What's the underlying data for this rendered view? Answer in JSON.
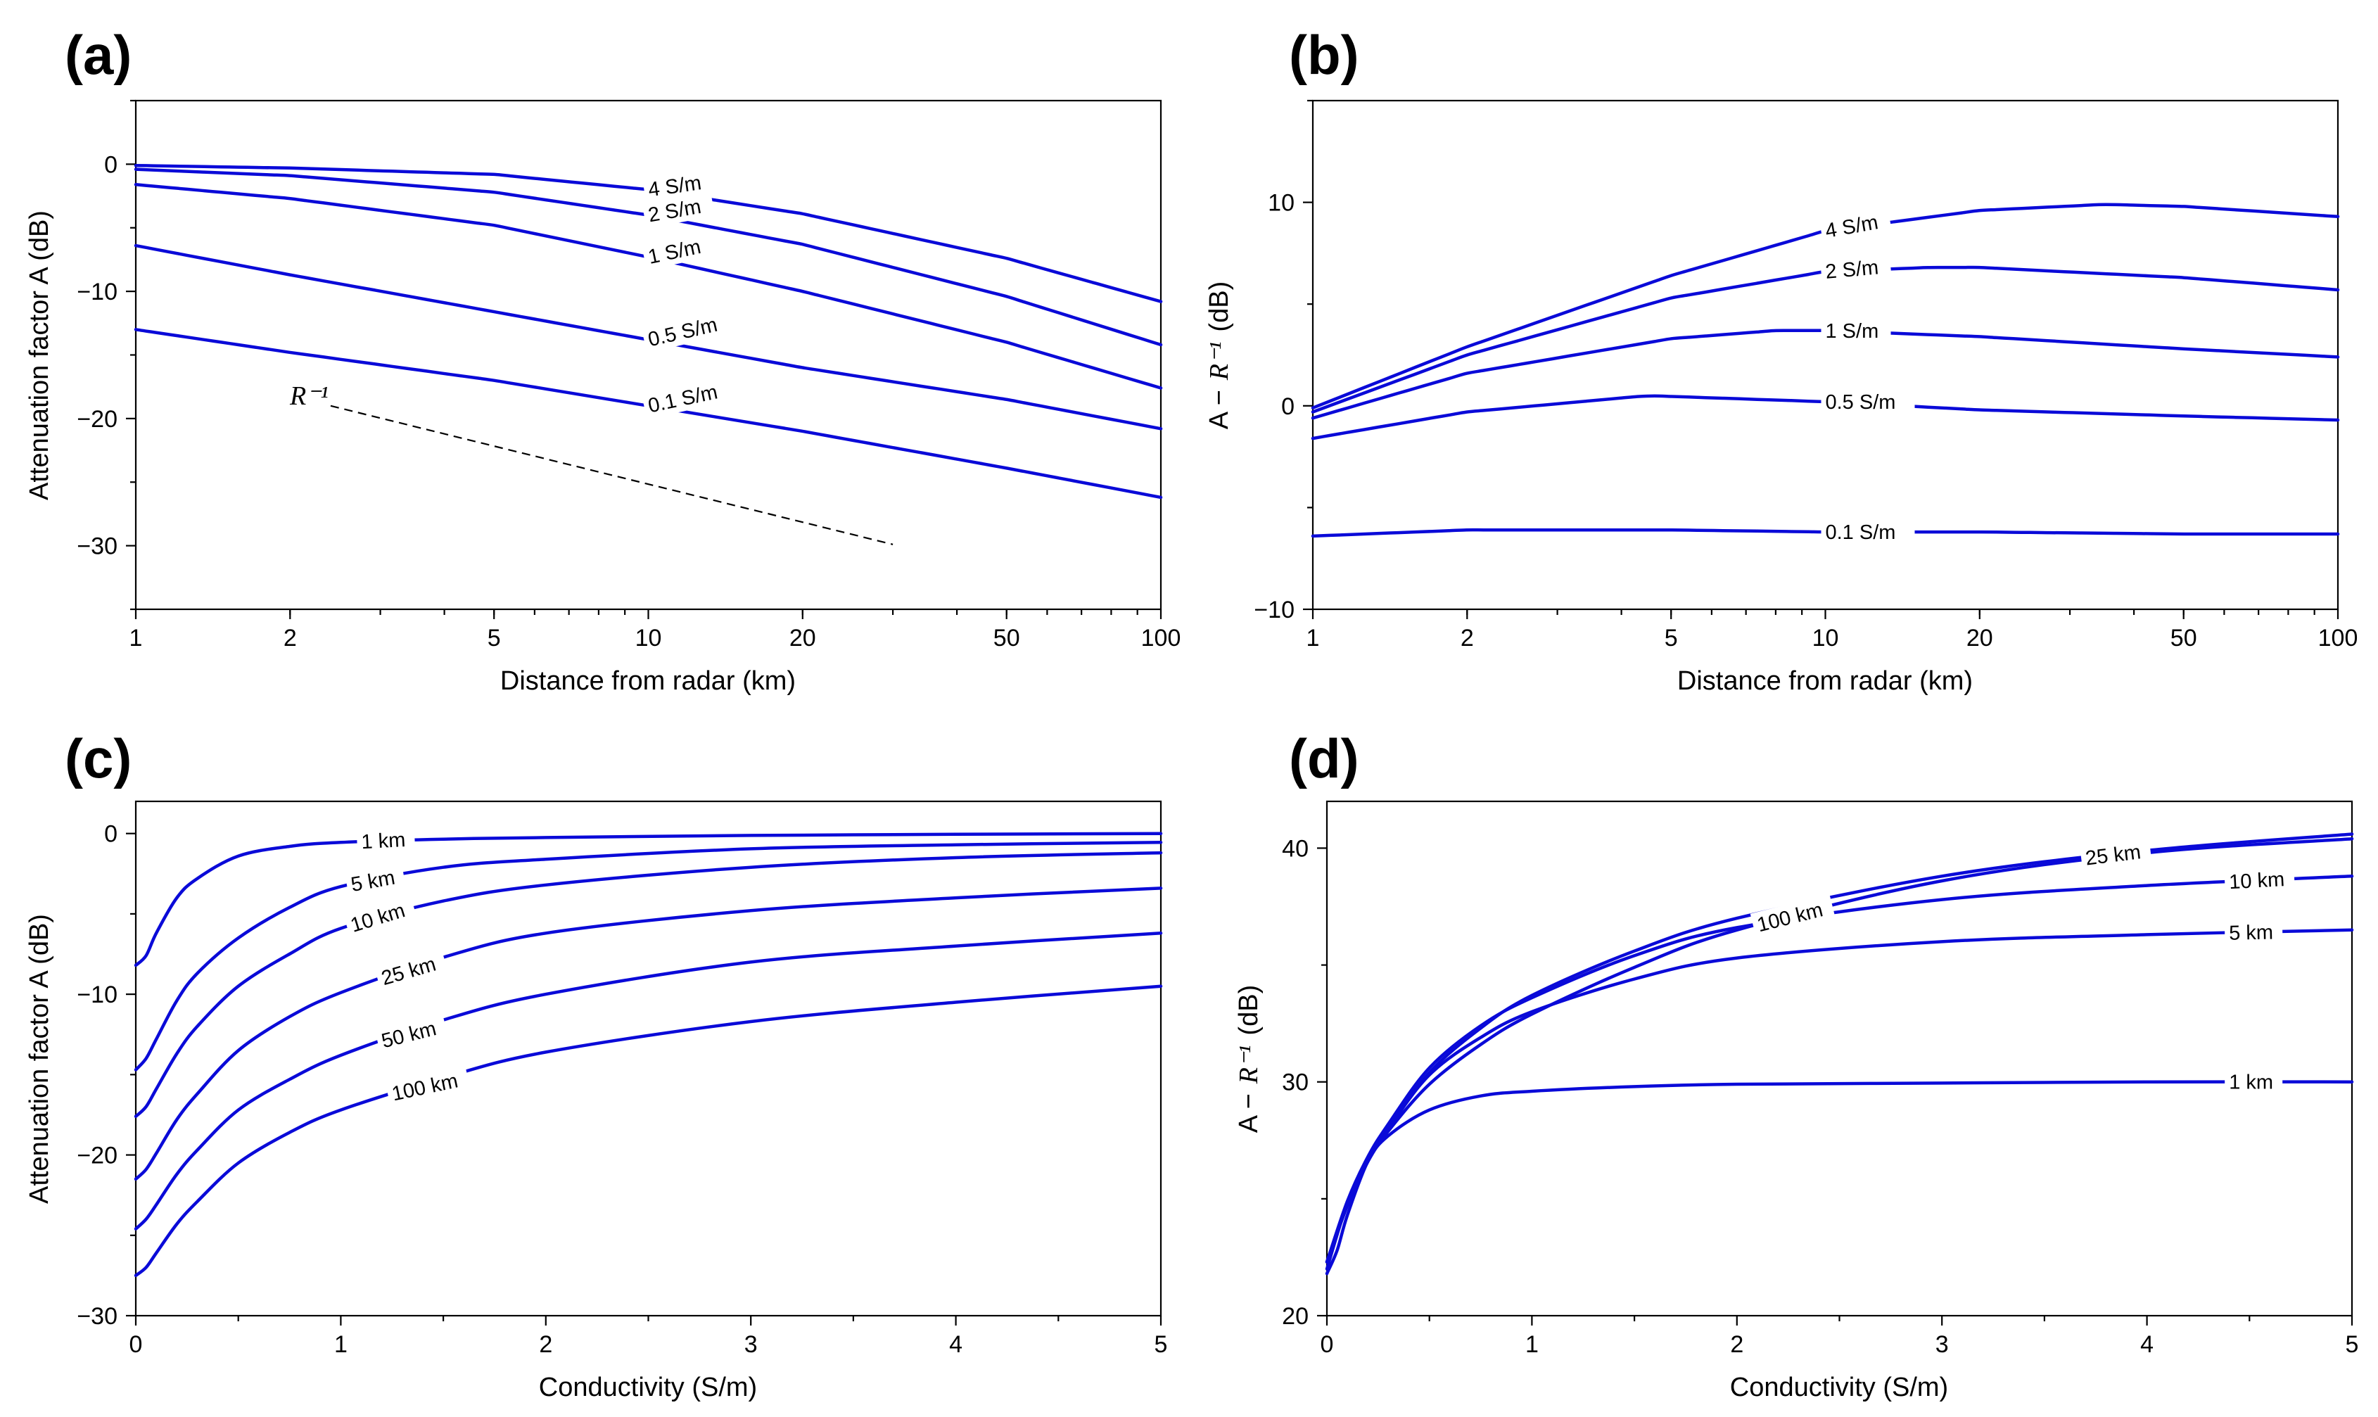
{
  "colors": {
    "curve": "#0a0ad8",
    "axis": "#000000",
    "background": "#ffffff"
  },
  "chart_data": [
    {
      "panel": "(a)",
      "type": "line",
      "xscale": "log",
      "xlim": [
        1,
        100
      ],
      "ylim": [
        -35,
        5
      ],
      "xticks": [
        1,
        2,
        5,
        10,
        20,
        50,
        100
      ],
      "xtick_labels": [
        "1",
        "2",
        "5",
        "10",
        "20",
        "50",
        "100"
      ],
      "yticks": [
        0,
        -10,
        -20,
        -30
      ],
      "ytick_labels": [
        "0",
        "−10",
        "−20",
        "−30"
      ],
      "xlabel": "Distance from radar (km)",
      "ylabel": "Attenuation factor A (dB)",
      "series": [
        {
          "name": "4 S/m",
          "label": "4 S/m",
          "label_at": 10,
          "label_angle": -8,
          "x": [
            1,
            2,
            5,
            10,
            20,
            50,
            100
          ],
          "y": [
            -0.1,
            -0.3,
            -0.8,
            -2.0,
            -3.9,
            -7.4,
            -10.8
          ]
        },
        {
          "name": "2 S/m",
          "label": "2 S/m",
          "label_at": 10,
          "label_angle": -10,
          "x": [
            1,
            2,
            5,
            10,
            20,
            50,
            100
          ],
          "y": [
            -0.4,
            -0.9,
            -2.2,
            -4.0,
            -6.3,
            -10.4,
            -14.2
          ]
        },
        {
          "name": "1 S/m",
          "label": "1 S/m",
          "label_at": 10,
          "label_angle": -12,
          "x": [
            1,
            2,
            5,
            10,
            20,
            50,
            100
          ],
          "y": [
            -1.6,
            -2.7,
            -4.8,
            -7.3,
            -10.0,
            -14.0,
            -17.6
          ]
        },
        {
          "name": "0.5 S/m",
          "label": "0.5 S/m",
          "label_at": 10,
          "label_angle": -13,
          "x": [
            1,
            2,
            5,
            10,
            20,
            50,
            100
          ],
          "y": [
            -6.4,
            -8.7,
            -11.6,
            -13.8,
            -16.0,
            -18.5,
            -20.8
          ]
        },
        {
          "name": "0.1 S/m",
          "label": "0.1 S/m",
          "label_at": 10,
          "label_angle": -12,
          "x": [
            1,
            2,
            5,
            10,
            20,
            50,
            100
          ],
          "y": [
            -13.0,
            -14.8,
            -17.0,
            -19.0,
            -21.0,
            -23.9,
            -26.2
          ]
        }
      ],
      "reference_line": {
        "label": "R⁻¹",
        "x": [
          2.4,
          30
        ],
        "y": [
          -19.0,
          -29.9
        ],
        "style": "dashed"
      }
    },
    {
      "panel": "(b)",
      "type": "line",
      "xscale": "log",
      "xlim": [
        1,
        100
      ],
      "ylim": [
        -10,
        15
      ],
      "xticks": [
        1,
        2,
        5,
        10,
        20,
        50,
        100
      ],
      "xtick_labels": [
        "1",
        "2",
        "5",
        "10",
        "20",
        "50",
        "100"
      ],
      "yticks": [
        10,
        0,
        -10
      ],
      "ytick_labels": [
        "10",
        "0",
        "−10"
      ],
      "xlabel": "Distance from radar (km)",
      "ylabel_prefix": "A −",
      "ylabel_italic": "R⁻¹",
      "ylabel_suffix": "(dB)",
      "series": [
        {
          "name": "4 S/m",
          "label": "4 S/m",
          "label_at": 10,
          "label_angle": -10,
          "x": [
            1,
            2,
            5,
            10,
            20,
            35,
            50,
            100
          ],
          "y": [
            -0.1,
            2.9,
            6.4,
            8.6,
            9.6,
            9.9,
            9.8,
            9.3
          ]
        },
        {
          "name": "2 S/m",
          "label": "2 S/m",
          "label_at": 10,
          "label_angle": -5,
          "x": [
            1,
            2,
            5,
            10,
            16,
            20,
            50,
            100
          ],
          "y": [
            -0.3,
            2.5,
            5.3,
            6.6,
            6.8,
            6.8,
            6.3,
            5.7
          ]
        },
        {
          "name": "1 S/m",
          "label": "1 S/m",
          "label_at": 10,
          "label_angle": 0,
          "x": [
            1,
            2,
            5,
            8,
            10,
            20,
            50,
            100
          ],
          "y": [
            -0.6,
            1.6,
            3.3,
            3.7,
            3.7,
            3.4,
            2.8,
            2.4
          ]
        },
        {
          "name": "0.5 S/m",
          "label": "0.5 S/m",
          "label_at": 10,
          "label_angle": 0,
          "x": [
            1,
            2,
            4.5,
            10,
            20,
            50,
            100
          ],
          "y": [
            -1.6,
            -0.3,
            0.5,
            0.2,
            -0.2,
            -0.5,
            -0.7
          ]
        },
        {
          "name": "0.1 S/m",
          "label": "0.1 S/m",
          "label_at": 10,
          "label_angle": 0,
          "x": [
            1,
            2,
            3,
            5,
            10,
            20,
            50,
            100
          ],
          "y": [
            -6.4,
            -6.1,
            -6.1,
            -6.1,
            -6.2,
            -6.2,
            -6.3,
            -6.3
          ]
        }
      ]
    },
    {
      "panel": "(c)",
      "type": "line",
      "xscale": "linear",
      "xlim": [
        0,
        5
      ],
      "ylim": [
        -30,
        2
      ],
      "xticks": [
        0,
        1,
        2,
        3,
        4,
        5
      ],
      "xtick_labels": [
        "0",
        "1",
        "2",
        "3",
        "4",
        "5"
      ],
      "yticks": [
        0,
        -10,
        -20,
        -30
      ],
      "ytick_labels": [
        "0",
        "−10",
        "−20",
        "−30"
      ],
      "xlabel": "Conductivity (S/m)",
      "ylabel": "Attenuation factor A (dB)",
      "series": [
        {
          "name": "1 km",
          "label": "1 km",
          "label_at": 1.1,
          "label_angle": -3,
          "x": [
            0.0,
            0.05,
            0.1,
            0.2,
            0.3,
            0.5,
            0.75,
            1.0,
            1.5,
            2.0,
            3.0,
            4.0,
            5.0
          ],
          "y": [
            -8.2,
            -7.6,
            -6.2,
            -4.0,
            -2.8,
            -1.4,
            -0.8,
            -0.55,
            -0.35,
            -0.25,
            -0.12,
            -0.05,
            0.0
          ]
        },
        {
          "name": "5 km",
          "label": "5 km",
          "label_at": 1.05,
          "label_angle": -10,
          "x": [
            0.0,
            0.05,
            0.1,
            0.2,
            0.3,
            0.5,
            0.75,
            1.0,
            1.5,
            2.0,
            3.0,
            4.0,
            5.0
          ],
          "y": [
            -14.7,
            -14.0,
            -12.8,
            -10.4,
            -8.7,
            -6.5,
            -4.6,
            -3.3,
            -2.1,
            -1.6,
            -0.95,
            -0.7,
            -0.55
          ]
        },
        {
          "name": "10 km",
          "label": "10 km",
          "label_at": 1.05,
          "label_angle": -17,
          "x": [
            0.0,
            0.05,
            0.1,
            0.2,
            0.3,
            0.5,
            0.75,
            1.0,
            1.5,
            2.0,
            3.0,
            4.0,
            5.0
          ],
          "y": [
            -17.6,
            -17.0,
            -15.9,
            -13.7,
            -12.0,
            -9.5,
            -7.5,
            -5.9,
            -4.2,
            -3.2,
            -2.1,
            -1.5,
            -1.2
          ]
        },
        {
          "name": "25 km",
          "label": "25 km",
          "label_at": 1.2,
          "label_angle": -16,
          "x": [
            0.0,
            0.05,
            0.1,
            0.2,
            0.3,
            0.5,
            0.75,
            1.0,
            1.5,
            2.0,
            3.0,
            4.0,
            5.0
          ],
          "y": [
            -21.5,
            -20.9,
            -19.9,
            -17.8,
            -16.2,
            -13.5,
            -11.4,
            -9.9,
            -7.7,
            -6.2,
            -4.8,
            -4.0,
            -3.4
          ]
        },
        {
          "name": "50 km",
          "label": "50 km",
          "label_at": 1.2,
          "label_angle": -14,
          "x": [
            0.0,
            0.05,
            0.1,
            0.2,
            0.3,
            0.5,
            0.75,
            1.0,
            1.5,
            2.0,
            3.0,
            4.0,
            5.0
          ],
          "y": [
            -24.6,
            -24.0,
            -23.1,
            -21.2,
            -19.7,
            -17.2,
            -15.3,
            -13.8,
            -11.6,
            -10.0,
            -8.0,
            -7.0,
            -6.2
          ]
        },
        {
          "name": "100 km",
          "label": "100 km",
          "label_at": 1.25,
          "label_angle": -12,
          "x": [
            0.0,
            0.05,
            0.1,
            0.2,
            0.3,
            0.5,
            0.75,
            1.0,
            1.5,
            2.0,
            3.0,
            4.0,
            5.0
          ],
          "y": [
            -27.5,
            -27.0,
            -26.1,
            -24.3,
            -22.9,
            -20.5,
            -18.6,
            -17.2,
            -15.2,
            -13.6,
            -11.7,
            -10.5,
            -9.5
          ]
        }
      ]
    },
    {
      "panel": "(d)",
      "type": "line",
      "xscale": "linear",
      "xlim": [
        0,
        5
      ],
      "ylim": [
        20,
        42
      ],
      "xticks": [
        0,
        1,
        2,
        3,
        4,
        5
      ],
      "xtick_labels": [
        "0",
        "1",
        "2",
        "3",
        "4",
        "5"
      ],
      "yticks": [
        40,
        30,
        20
      ],
      "ytick_labels": [
        "40",
        "30",
        "20"
      ],
      "xlabel": "Conductivity (S/m)",
      "ylabel_prefix": "A −",
      "ylabel_italic": "R⁻¹",
      "ylabel_suffix": "(dB)",
      "series": [
        {
          "name": "25 km",
          "label": "25 km",
          "label_at": 3.7,
          "label_angle": -7,
          "x": [
            0.0,
            0.1,
            0.2,
            0.3,
            0.5,
            0.75,
            1.0,
            1.5,
            2.0,
            3.0,
            4.0,
            5.0
          ],
          "y": [
            22.3,
            24.8,
            26.6,
            28.0,
            30.4,
            32.3,
            33.7,
            35.6,
            37.0,
            38.8,
            39.9,
            40.6
          ]
        },
        {
          "name": "10 km",
          "label": "10 km",
          "label_at": 4.4,
          "label_angle": -3,
          "x": [
            0.0,
            0.1,
            0.2,
            0.3,
            0.5,
            0.75,
            1.0,
            1.5,
            2.0,
            3.0,
            4.0,
            5.0
          ],
          "y": [
            22.3,
            24.9,
            26.8,
            28.2,
            30.6,
            32.4,
            33.6,
            35.4,
            36.6,
            37.8,
            38.4,
            38.8
          ]
        },
        {
          "name": "5 km",
          "label": "5 km",
          "label_at": 4.4,
          "label_angle": -1,
          "x": [
            0.0,
            0.1,
            0.2,
            0.3,
            0.5,
            0.75,
            1.0,
            1.5,
            2.0,
            3.0,
            4.0,
            5.0
          ],
          "y": [
            22.3,
            24.7,
            26.6,
            28.0,
            30.3,
            31.9,
            33.0,
            34.4,
            35.3,
            36.0,
            36.3,
            36.5
          ]
        },
        {
          "name": "1 km",
          "label": "1 km",
          "label_at": 4.4,
          "label_angle": 0,
          "x": [
            0.0,
            0.05,
            0.1,
            0.2,
            0.3,
            0.5,
            0.75,
            1.0,
            1.5,
            2.0,
            3.0,
            4.0,
            5.0
          ],
          "y": [
            21.8,
            22.8,
            24.3,
            26.6,
            27.7,
            28.8,
            29.4,
            29.6,
            29.8,
            29.9,
            29.95,
            30.0,
            30.0
          ]
        },
        {
          "name": "100 km",
          "label": "100 km",
          "label_at": 2.1,
          "label_angle": -14,
          "x": [
            0.0,
            0.1,
            0.2,
            0.3,
            0.5,
            0.75,
            1.0,
            1.5,
            2.0,
            3.0,
            4.0,
            5.0
          ],
          "y": [
            22.0,
            24.8,
            26.6,
            27.9,
            29.9,
            31.6,
            32.9,
            34.9,
            36.5,
            38.6,
            39.8,
            40.4
          ]
        }
      ]
    }
  ]
}
